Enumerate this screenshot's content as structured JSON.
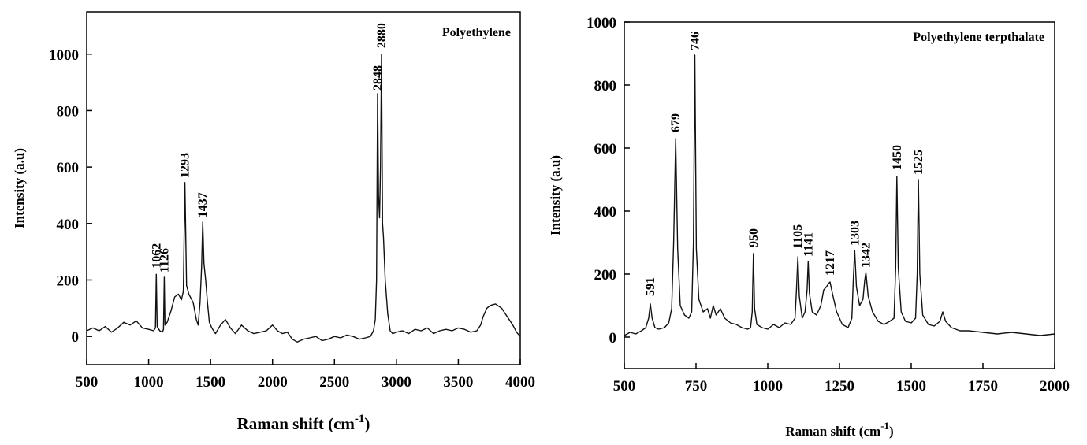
{
  "chart_data": [
    {
      "type": "line",
      "title": "Polyethylene",
      "xlabel": "Raman shift (cm",
      "xlabel_sup": "-1",
      "xlabel_close": ")",
      "ylabel": "Intensity (a.u)",
      "xlim": [
        500,
        4000
      ],
      "ylim": [
        -100,
        1150
      ],
      "x_ticks": [
        500,
        1000,
        1500,
        2000,
        2500,
        3000,
        3500,
        4000
      ],
      "x_tick_labels": [
        "500",
        "1000",
        "1500",
        "2000",
        "2500",
        "3000",
        "3500",
        "4000"
      ],
      "y_ticks": [
        0,
        200,
        400,
        600,
        800,
        1000
      ],
      "y_tick_labels": [
        "0",
        "200",
        "400",
        "600",
        "800",
        "1000"
      ],
      "peak_labels": [
        {
          "text": "1062",
          "x": 1062,
          "y": 230
        },
        {
          "text": "1126",
          "x": 1126,
          "y": 215
        },
        {
          "text": "1293",
          "x": 1293,
          "y": 550
        },
        {
          "text": "1437",
          "x": 1437,
          "y": 410
        },
        {
          "text": "2848",
          "x": 2848,
          "y": 860
        },
        {
          "text": "2880",
          "x": 2880,
          "y": 1010
        }
      ],
      "series": [
        {
          "x": [
            500,
            550,
            600,
            650,
            700,
            750,
            800,
            850,
            900,
            950,
            1000,
            1040,
            1055,
            1062,
            1069,
            1090,
            1110,
            1120,
            1126,
            1132,
            1150,
            1180,
            1210,
            1240,
            1265,
            1280,
            1293,
            1306,
            1325,
            1360,
            1385,
            1400,
            1415,
            1428,
            1437,
            1446,
            1460,
            1475,
            1490,
            1510,
            1540,
            1580,
            1620,
            1660,
            1700,
            1750,
            1800,
            1850,
            1900,
            1950,
            2000,
            2040,
            2080,
            2120,
            2160,
            2200,
            2250,
            2300,
            2350,
            2400,
            2450,
            2500,
            2550,
            2600,
            2650,
            2700,
            2750,
            2790,
            2815,
            2830,
            2840,
            2848,
            2856,
            2864,
            2872,
            2880,
            2888,
            2896,
            2910,
            2930,
            2950,
            2970,
            3000,
            3050,
            3100,
            3150,
            3200,
            3250,
            3300,
            3350,
            3400,
            3450,
            3500,
            3550,
            3600,
            3650,
            3680,
            3700,
            3730,
            3760,
            3800,
            3850,
            3880,
            3910,
            3940,
            3970,
            4000
          ],
          "y": [
            20,
            30,
            20,
            35,
            15,
            30,
            50,
            40,
            55,
            30,
            25,
            20,
            30,
            220,
            35,
            20,
            15,
            25,
            210,
            40,
            50,
            90,
            140,
            150,
            130,
            160,
            545,
            180,
            150,
            120,
            60,
            40,
            120,
            250,
            405,
            260,
            200,
            120,
            50,
            30,
            10,
            40,
            60,
            30,
            10,
            40,
            20,
            10,
            15,
            20,
            40,
            20,
            10,
            15,
            -10,
            -20,
            -10,
            -5,
            0,
            -15,
            -10,
            0,
            -5,
            5,
            0,
            -10,
            -5,
            0,
            20,
            60,
            200,
            860,
            500,
            420,
            600,
            1000,
            400,
            350,
            200,
            80,
            20,
            10,
            15,
            20,
            10,
            25,
            20,
            30,
            10,
            20,
            25,
            20,
            30,
            25,
            15,
            20,
            40,
            70,
            100,
            110,
            115,
            100,
            80,
            60,
            40,
            15,
            0
          ]
        }
      ]
    },
    {
      "type": "line",
      "title": "Polyethylene terpthalate",
      "xlabel": "Raman shift (cm",
      "xlabel_sup": "-1",
      "xlabel_close": ")",
      "ylabel": "Intensity (a.u)",
      "xlim": [
        500,
        2000
      ],
      "ylim": [
        -100,
        1000
      ],
      "x_ticks": [
        500,
        750,
        1000,
        1250,
        1500,
        1750,
        2000
      ],
      "x_tick_labels": [
        "500",
        "750",
        "1000",
        "1250",
        "1500",
        "1750",
        "2000"
      ],
      "y_ticks": [
        0,
        200,
        400,
        600,
        800,
        1000
      ],
      "y_tick_labels": [
        "0",
        "200",
        "400",
        "600",
        "800",
        "1000"
      ],
      "peak_labels": [
        {
          "text": "591",
          "x": 591,
          "y": 120
        },
        {
          "text": "679",
          "x": 679,
          "y": 640
        },
        {
          "text": "746",
          "x": 746,
          "y": 900
        },
        {
          "text": "950",
          "x": 950,
          "y": 275
        },
        {
          "text": "1105",
          "x": 1105,
          "y": 270
        },
        {
          "text": "1141",
          "x": 1141,
          "y": 245
        },
        {
          "text": "1217",
          "x": 1217,
          "y": 185
        },
        {
          "text": "1303",
          "x": 1303,
          "y": 280
        },
        {
          "text": "1342",
          "x": 1342,
          "y": 210
        },
        {
          "text": "1450",
          "x": 1450,
          "y": 520
        },
        {
          "text": "1525",
          "x": 1525,
          "y": 505
        }
      ],
      "series": [
        {
          "x": [
            500,
            520,
            540,
            560,
            575,
            585,
            591,
            597,
            607,
            620,
            640,
            655,
            665,
            672,
            679,
            686,
            695,
            710,
            725,
            735,
            741,
            746,
            751,
            760,
            775,
            790,
            800,
            810,
            820,
            835,
            850,
            870,
            890,
            910,
            930,
            940,
            946,
            950,
            954,
            962,
            980,
            1000,
            1020,
            1040,
            1060,
            1080,
            1095,
            1100,
            1105,
            1110,
            1120,
            1130,
            1137,
            1141,
            1145,
            1155,
            1170,
            1185,
            1195,
            1205,
            1212,
            1217,
            1225,
            1240,
            1260,
            1280,
            1293,
            1298,
            1303,
            1309,
            1320,
            1332,
            1338,
            1342,
            1350,
            1365,
            1385,
            1405,
            1425,
            1440,
            1446,
            1450,
            1455,
            1465,
            1480,
            1500,
            1515,
            1521,
            1525,
            1530,
            1540,
            1560,
            1580,
            1600,
            1610,
            1620,
            1640,
            1670,
            1700,
            1750,
            1800,
            1850,
            1900,
            1950,
            2000
          ],
          "y": [
            5,
            15,
            10,
            20,
            30,
            60,
            105,
            60,
            30,
            25,
            30,
            45,
            90,
            300,
            630,
            280,
            100,
            70,
            60,
            80,
            300,
            895,
            280,
            120,
            80,
            90,
            60,
            100,
            70,
            90,
            60,
            45,
            40,
            30,
            25,
            30,
            80,
            265,
            90,
            40,
            30,
            25,
            40,
            30,
            45,
            40,
            60,
            150,
            255,
            130,
            60,
            80,
            150,
            240,
            140,
            80,
            70,
            100,
            150,
            160,
            170,
            175,
            140,
            80,
            40,
            30,
            60,
            180,
            275,
            160,
            100,
            120,
            180,
            205,
            130,
            80,
            50,
            40,
            50,
            60,
            220,
            510,
            220,
            80,
            50,
            45,
            60,
            200,
            500,
            200,
            70,
            40,
            35,
            50,
            80,
            50,
            30,
            20,
            20,
            15,
            10,
            15,
            10,
            5,
            10
          ]
        }
      ]
    }
  ]
}
